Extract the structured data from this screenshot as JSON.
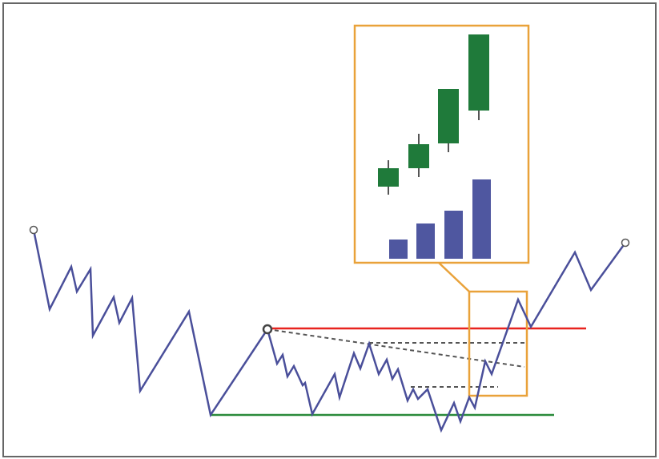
{
  "colors": {
    "price_line": "#4a4f9a",
    "resistance": "#e8231f",
    "support": "#2a8a3a",
    "trend_dashed": "#555555",
    "highlight_box": "#e9a23a",
    "candle_up": "#1f7a3a",
    "candle_wick": "#555555",
    "volume_bar": "#4f57a0",
    "frame": "#666666"
  }
}
